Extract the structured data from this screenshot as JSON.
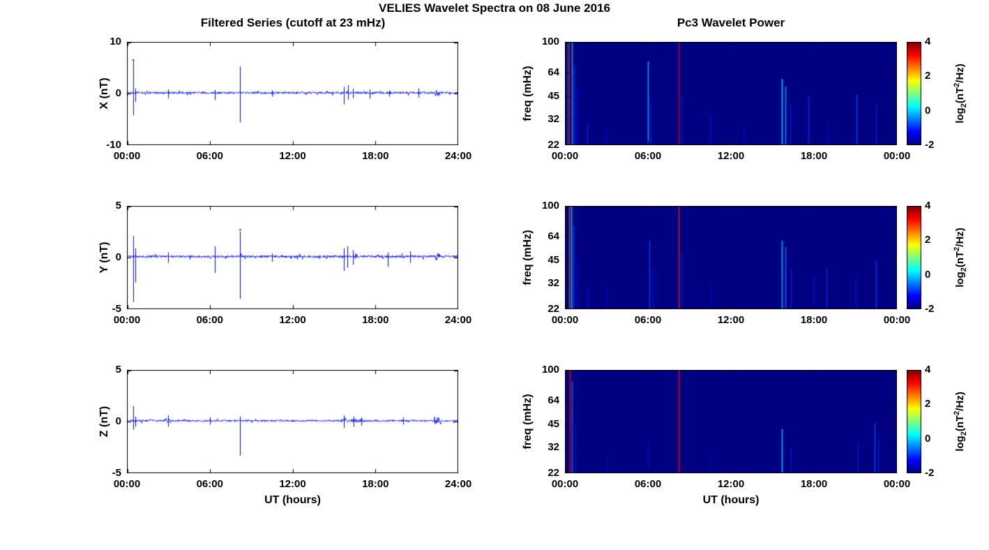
{
  "figure": {
    "title": "VELIES Wavelet Spectra on 08 June 2016",
    "left_title": "Filtered Series (cutoff at 23 mHz)",
    "right_title": "Pc3 Wavelet Power",
    "xlabel": "UT (hours)",
    "background": "#ffffff",
    "axis_color": "#000000",
    "colorbar": {
      "range": [
        -2,
        4
      ],
      "ticks": [
        4,
        2,
        0,
        -2
      ],
      "label": {
        "pre": "log",
        "sub": "2",
        "mid": "(nT",
        "sup": "2",
        "post": "/Hz)"
      }
    }
  },
  "chart_data": [
    {
      "id": "x-series",
      "type": "line",
      "row": 0,
      "ylabel": "X (nT)",
      "ylim": [
        -10,
        10
      ],
      "yticks": [
        10,
        0,
        -10
      ],
      "xlim": [
        0,
        24
      ],
      "xtick_labels": [
        "00:00",
        "06:00",
        "12:00",
        "18:00",
        "24:00"
      ],
      "line_color": "#0008ee",
      "noise_amp": 0.22,
      "baseline": 0.15,
      "spikes": [
        {
          "t": 0.45,
          "lo": -4.2,
          "hi": 6.3
        },
        {
          "t": 0.62,
          "lo": -1.6,
          "hi": 1.0
        },
        {
          "t": 3.0,
          "lo": -0.9,
          "hi": 0.8
        },
        {
          "t": 6.35,
          "lo": -1.3,
          "hi": 0.7
        },
        {
          "t": 8.2,
          "lo": -5.6,
          "hi": 5.2
        },
        {
          "t": 10.5,
          "lo": -0.6,
          "hi": 0.6
        },
        {
          "t": 15.7,
          "lo": -2.1,
          "hi": 1.3
        },
        {
          "t": 16.0,
          "lo": -1.2,
          "hi": 1.6
        },
        {
          "t": 16.35,
          "lo": -0.9,
          "hi": 0.9
        },
        {
          "t": 17.6,
          "lo": -1.0,
          "hi": 0.8
        },
        {
          "t": 19.0,
          "lo": -0.6,
          "hi": 0.6
        },
        {
          "t": 21.1,
          "lo": -0.8,
          "hi": 1.0
        }
      ],
      "bursts": [
        {
          "t0": 22.3,
          "t1": 22.7,
          "amp": 0.7
        }
      ],
      "tip_marks": [
        {
          "t": 0.45,
          "y": 6.5,
          "color": "#b03000"
        }
      ]
    },
    {
      "id": "y-series",
      "type": "line",
      "row": 1,
      "ylabel": "Y (nT)",
      "ylim": [
        -5,
        5
      ],
      "yticks": [
        5,
        0,
        -5
      ],
      "xlim": [
        0,
        24
      ],
      "xtick_labels": [
        "00:00",
        "06:00",
        "12:00",
        "18:00",
        "24:00"
      ],
      "line_color": "#0008ee",
      "noise_amp": 0.13,
      "baseline": 0.1,
      "spikes": [
        {
          "t": 0.45,
          "lo": -4.3,
          "hi": 2.1
        },
        {
          "t": 0.62,
          "lo": -2.4,
          "hi": 0.9
        },
        {
          "t": 3.0,
          "lo": -0.5,
          "hi": 0.5
        },
        {
          "t": 6.35,
          "lo": -1.5,
          "hi": 1.1
        },
        {
          "t": 8.2,
          "lo": -4.0,
          "hi": 2.5
        },
        {
          "t": 10.5,
          "lo": -0.4,
          "hi": 0.4
        },
        {
          "t": 15.7,
          "lo": -1.3,
          "hi": 0.9
        },
        {
          "t": 15.95,
          "lo": -1.0,
          "hi": 1.1
        },
        {
          "t": 16.35,
          "lo": -0.7,
          "hi": 0.7
        },
        {
          "t": 18.9,
          "lo": -0.9,
          "hi": 0.5
        },
        {
          "t": 20.5,
          "lo": -0.5,
          "hi": 0.6
        }
      ],
      "bursts": [
        {
          "t0": 22.3,
          "t1": 22.7,
          "amp": 0.42
        }
      ],
      "tip_marks": [
        {
          "t": 8.2,
          "y": 2.7,
          "color": "#b03000"
        }
      ]
    },
    {
      "id": "z-series",
      "type": "line",
      "row": 2,
      "ylabel": "Z (nT)",
      "ylim": [
        -5,
        5
      ],
      "yticks": [
        5,
        0,
        -5
      ],
      "xlim": [
        0,
        24
      ],
      "xtick_labels": [
        "00:00",
        "06:00",
        "12:00",
        "18:00",
        "24:00"
      ],
      "line_color": "#0008ee",
      "noise_amp": 0.1,
      "baseline": 0.08,
      "spikes": [
        {
          "t": 0.45,
          "lo": -0.8,
          "hi": 1.5
        },
        {
          "t": 0.6,
          "lo": -0.5,
          "hi": 0.5
        },
        {
          "t": 3.0,
          "lo": -0.5,
          "hi": 0.6
        },
        {
          "t": 6.0,
          "lo": -0.3,
          "hi": 0.4
        },
        {
          "t": 8.2,
          "lo": -3.3,
          "hi": 0.5
        },
        {
          "t": 15.7,
          "lo": -0.6,
          "hi": 0.6
        },
        {
          "t": 16.4,
          "lo": -0.5,
          "hi": 0.5
        },
        {
          "t": 17.0,
          "lo": -0.4,
          "hi": 0.4
        },
        {
          "t": 20.0,
          "lo": -0.3,
          "hi": 0.4
        }
      ],
      "bursts": [
        {
          "t0": 22.2,
          "t1": 22.75,
          "amp": 0.5
        },
        {
          "t0": 15.4,
          "t1": 17.2,
          "amp": 0.18
        },
        {
          "t0": 2.85,
          "t1": 3.25,
          "amp": 0.25
        }
      ],
      "tip_marks": []
    },
    {
      "id": "x-spec",
      "type": "heatmap",
      "row": 0,
      "ylabel": "freq (mHz)",
      "ylim": [
        22,
        100
      ],
      "yscale": "log",
      "yticks": [
        100,
        64,
        45,
        32,
        22
      ],
      "xlim": [
        0,
        24
      ],
      "xtick_labels": [
        "00:00",
        "06:00",
        "12:00",
        "18:00",
        "00:00"
      ],
      "background_value": -2,
      "streaks": [
        {
          "t": 0.18,
          "power": -0.5,
          "f_top": 100,
          "alpha": 0.55
        },
        {
          "t": 0.32,
          "power": 3.6,
          "f_top": 100,
          "alpha": 0.9
        },
        {
          "t": 0.5,
          "power": -0.2,
          "f_top": 100,
          "alpha": 0.7
        },
        {
          "t": 0.65,
          "power": -0.9,
          "f_top": 70,
          "alpha": 0.55
        },
        {
          "t": 0.85,
          "power": -1.2,
          "f_top": 50,
          "alpha": 0.45
        },
        {
          "t": 1.6,
          "power": -1.0,
          "f_top": 30,
          "alpha": 0.5
        },
        {
          "t": 2.9,
          "power": -1.3,
          "f_top": 27,
          "alpha": 0.45
        },
        {
          "t": 6.0,
          "power": -0.3,
          "f_top": 75,
          "alpha": 0.8
        },
        {
          "t": 6.2,
          "power": -1.0,
          "f_top": 40,
          "alpha": 0.5
        },
        {
          "t": 8.2,
          "power": 3.2,
          "f_top": 100,
          "alpha": 0.55
        },
        {
          "t": 8.4,
          "power": -1.0,
          "f_top": 45,
          "alpha": 0.4
        },
        {
          "t": 10.5,
          "power": -1.1,
          "f_top": 35,
          "alpha": 0.45
        },
        {
          "t": 12.9,
          "power": -1.3,
          "f_top": 30,
          "alpha": 0.4
        },
        {
          "t": 15.7,
          "power": -0.2,
          "f_top": 58,
          "alpha": 0.9
        },
        {
          "t": 15.95,
          "power": -0.4,
          "f_top": 52,
          "alpha": 0.8
        },
        {
          "t": 16.3,
          "power": -1.0,
          "f_top": 40,
          "alpha": 0.5
        },
        {
          "t": 17.6,
          "power": -0.9,
          "f_top": 45,
          "alpha": 0.5
        },
        {
          "t": 19.0,
          "power": -1.2,
          "f_top": 30,
          "alpha": 0.4
        },
        {
          "t": 21.1,
          "power": -0.8,
          "f_top": 46,
          "alpha": 0.6
        },
        {
          "t": 22.5,
          "power": -1.0,
          "f_top": 40,
          "alpha": 0.5
        }
      ]
    },
    {
      "id": "y-spec",
      "type": "heatmap",
      "row": 1,
      "ylabel": "freq (mHz)",
      "ylim": [
        22,
        100
      ],
      "yscale": "log",
      "yticks": [
        100,
        64,
        45,
        32,
        22
      ],
      "xlim": [
        0,
        24
      ],
      "xtick_labels": [
        "00:00",
        "06:00",
        "12:00",
        "18:00",
        "00:00"
      ],
      "background_value": -2,
      "streaks": [
        {
          "t": 0.3,
          "power": 2.6,
          "f_top": 100,
          "alpha": 0.5
        },
        {
          "t": 0.45,
          "power": -0.2,
          "f_top": 100,
          "alpha": 0.85
        },
        {
          "t": 0.62,
          "power": -0.8,
          "f_top": 75,
          "alpha": 0.6
        },
        {
          "t": 0.85,
          "power": -1.2,
          "f_top": 45,
          "alpha": 0.45
        },
        {
          "t": 1.6,
          "power": -1.1,
          "f_top": 30,
          "alpha": 0.45
        },
        {
          "t": 3.0,
          "power": -1.2,
          "f_top": 30,
          "alpha": 0.4
        },
        {
          "t": 6.1,
          "power": -0.8,
          "f_top": 60,
          "alpha": 0.6
        },
        {
          "t": 6.35,
          "power": -1.1,
          "f_top": 40,
          "alpha": 0.45
        },
        {
          "t": 8.2,
          "power": 3.0,
          "f_top": 100,
          "alpha": 0.6
        },
        {
          "t": 8.4,
          "power": -1.0,
          "f_top": 50,
          "alpha": 0.45
        },
        {
          "t": 10.5,
          "power": -1.2,
          "f_top": 32,
          "alpha": 0.4
        },
        {
          "t": 15.7,
          "power": -0.3,
          "f_top": 60,
          "alpha": 0.85
        },
        {
          "t": 15.95,
          "power": -0.6,
          "f_top": 55,
          "alpha": 0.7
        },
        {
          "t": 16.35,
          "power": -1.0,
          "f_top": 40,
          "alpha": 0.5
        },
        {
          "t": 18.0,
          "power": -1.1,
          "f_top": 35,
          "alpha": 0.45
        },
        {
          "t": 18.9,
          "power": -1.0,
          "f_top": 40,
          "alpha": 0.5
        },
        {
          "t": 21.0,
          "power": -1.1,
          "f_top": 35,
          "alpha": 0.4
        },
        {
          "t": 22.5,
          "power": -0.9,
          "f_top": 45,
          "alpha": 0.6
        }
      ]
    },
    {
      "id": "z-spec",
      "type": "heatmap",
      "row": 2,
      "ylabel": "freq (mHz)",
      "ylim": [
        22,
        100
      ],
      "yscale": "log",
      "yticks": [
        100,
        64,
        45,
        32,
        22
      ],
      "xlim": [
        0,
        24
      ],
      "xtick_labels": [
        "00:00",
        "06:00",
        "12:00",
        "18:00",
        "00:00"
      ],
      "background_value": -2,
      "streaks": [
        {
          "t": 0.35,
          "power": 3.5,
          "f_top": 100,
          "alpha": 0.85
        },
        {
          "t": 0.5,
          "power": -0.5,
          "f_top": 85,
          "alpha": 0.6
        },
        {
          "t": 0.7,
          "power": -1.1,
          "f_top": 45,
          "alpha": 0.45
        },
        {
          "t": 3.0,
          "power": -1.2,
          "f_top": 28,
          "alpha": 0.4
        },
        {
          "t": 6.0,
          "power": -1.1,
          "f_top": 35,
          "alpha": 0.4
        },
        {
          "t": 8.2,
          "power": 3.2,
          "f_top": 100,
          "alpha": 0.7
        },
        {
          "t": 10.5,
          "power": -1.3,
          "f_top": 28,
          "alpha": 0.35
        },
        {
          "t": 15.7,
          "power": -0.2,
          "f_top": 42,
          "alpha": 0.8
        },
        {
          "t": 16.35,
          "power": -1.0,
          "f_top": 32,
          "alpha": 0.4
        },
        {
          "t": 21.2,
          "power": -1.0,
          "f_top": 35,
          "alpha": 0.4
        },
        {
          "t": 22.4,
          "power": -0.8,
          "f_top": 46,
          "alpha": 0.6
        },
        {
          "t": 22.65,
          "power": -1.0,
          "f_top": 36,
          "alpha": 0.5
        }
      ]
    }
  ]
}
